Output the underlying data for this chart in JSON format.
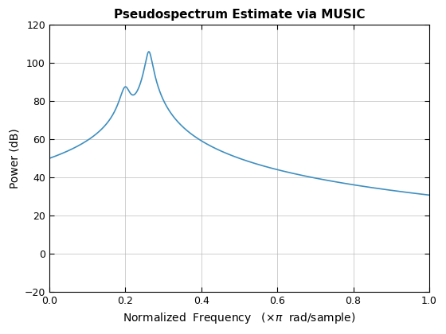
{
  "title": "Pseudospectrum Estimate via MUSIC",
  "ylabel": "Power (dB)",
  "line_color": "#3f8fbf",
  "xlim": [
    0,
    1
  ],
  "ylim": [
    -20,
    120
  ],
  "xticks": [
    0,
    0.2,
    0.4,
    0.6,
    0.8,
    1.0
  ],
  "yticks": [
    -20,
    0,
    20,
    40,
    60,
    80,
    100,
    120
  ],
  "freq1": 0.2,
  "freq2": 0.262,
  "bw1": 0.013,
  "bw2": 0.009,
  "peak1_db": 86,
  "peak2_db": 106,
  "background": "#ffffff",
  "grid_color": "#b0b0b0"
}
